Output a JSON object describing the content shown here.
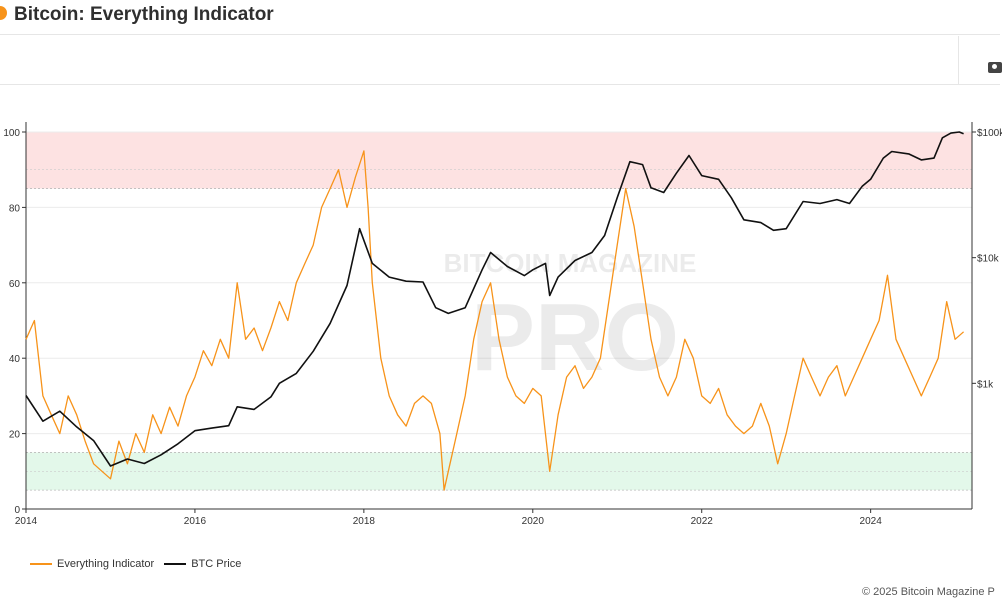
{
  "header": {
    "title": "Bitcoin: Everything Indicator"
  },
  "toolbar": {
    "icons": [
      "camera-icon"
    ]
  },
  "watermark": {
    "line1": "BITCOIN MAGAZINE",
    "line2": "PRO"
  },
  "footer": {
    "copyright": "© 2025 Bitcoin Magazine P"
  },
  "colors": {
    "indicator": "#f7931a",
    "price": "#111111",
    "top_zone": "#fde2e2",
    "bottom_zone": "#e3f8ea"
  },
  "chart_data": {
    "type": "line",
    "title": "Bitcoin: Everything Indicator",
    "xlabel": "",
    "ylabel": "",
    "x_range": [
      2014.0,
      2025.2
    ],
    "y_left_range": [
      0,
      100
    ],
    "y_right_range": [
      100,
      100000
    ],
    "y_right_scale": "log",
    "x_ticks": [
      "2014",
      "2016",
      "2018",
      "2020",
      "2022",
      "2024"
    ],
    "y_left_ticks": [
      "0",
      "20",
      "40",
      "60",
      "80",
      "100"
    ],
    "y_right_ticks": [
      "$1k",
      "$10k",
      "$100k"
    ],
    "zones": [
      {
        "name": "top",
        "from": 85,
        "to": 100
      },
      {
        "name": "bottom",
        "from": 5,
        "to": 15
      }
    ],
    "grid": true,
    "legend_position": "bottom-left",
    "series": [
      {
        "name": "Everything Indicator",
        "axis": "left",
        "points": [
          [
            2014.0,
            45
          ],
          [
            2014.1,
            50
          ],
          [
            2014.2,
            30
          ],
          [
            2014.3,
            25
          ],
          [
            2014.4,
            20
          ],
          [
            2014.5,
            30
          ],
          [
            2014.6,
            25
          ],
          [
            2014.7,
            18
          ],
          [
            2014.8,
            12
          ],
          [
            2014.9,
            10
          ],
          [
            2015.0,
            8
          ],
          [
            2015.1,
            18
          ],
          [
            2015.2,
            12
          ],
          [
            2015.3,
            20
          ],
          [
            2015.4,
            15
          ],
          [
            2015.5,
            25
          ],
          [
            2015.6,
            20
          ],
          [
            2015.7,
            27
          ],
          [
            2015.8,
            22
          ],
          [
            2015.9,
            30
          ],
          [
            2016.0,
            35
          ],
          [
            2016.1,
            42
          ],
          [
            2016.2,
            38
          ],
          [
            2016.3,
            45
          ],
          [
            2016.4,
            40
          ],
          [
            2016.5,
            60
          ],
          [
            2016.6,
            45
          ],
          [
            2016.7,
            48
          ],
          [
            2016.8,
            42
          ],
          [
            2016.9,
            48
          ],
          [
            2017.0,
            55
          ],
          [
            2017.1,
            50
          ],
          [
            2017.2,
            60
          ],
          [
            2017.3,
            65
          ],
          [
            2017.4,
            70
          ],
          [
            2017.5,
            80
          ],
          [
            2017.6,
            85
          ],
          [
            2017.7,
            90
          ],
          [
            2017.8,
            80
          ],
          [
            2017.9,
            88
          ],
          [
            2018.0,
            95
          ],
          [
            2018.05,
            80
          ],
          [
            2018.1,
            60
          ],
          [
            2018.2,
            40
          ],
          [
            2018.3,
            30
          ],
          [
            2018.4,
            25
          ],
          [
            2018.5,
            22
          ],
          [
            2018.6,
            28
          ],
          [
            2018.7,
            30
          ],
          [
            2018.8,
            28
          ],
          [
            2018.9,
            20
          ],
          [
            2018.95,
            5
          ],
          [
            2019.0,
            10
          ],
          [
            2019.1,
            20
          ],
          [
            2019.2,
            30
          ],
          [
            2019.3,
            45
          ],
          [
            2019.4,
            55
          ],
          [
            2019.5,
            60
          ],
          [
            2019.6,
            45
          ],
          [
            2019.7,
            35
          ],
          [
            2019.8,
            30
          ],
          [
            2019.9,
            28
          ],
          [
            2020.0,
            32
          ],
          [
            2020.1,
            30
          ],
          [
            2020.2,
            10
          ],
          [
            2020.3,
            25
          ],
          [
            2020.4,
            35
          ],
          [
            2020.5,
            38
          ],
          [
            2020.6,
            32
          ],
          [
            2020.7,
            35
          ],
          [
            2020.8,
            40
          ],
          [
            2020.9,
            55
          ],
          [
            2021.0,
            70
          ],
          [
            2021.1,
            85
          ],
          [
            2021.2,
            75
          ],
          [
            2021.3,
            60
          ],
          [
            2021.4,
            45
          ],
          [
            2021.5,
            35
          ],
          [
            2021.6,
            30
          ],
          [
            2021.7,
            35
          ],
          [
            2021.8,
            45
          ],
          [
            2021.9,
            40
          ],
          [
            2022.0,
            30
          ],
          [
            2022.1,
            28
          ],
          [
            2022.2,
            32
          ],
          [
            2022.3,
            25
          ],
          [
            2022.4,
            22
          ],
          [
            2022.5,
            20
          ],
          [
            2022.6,
            22
          ],
          [
            2022.7,
            28
          ],
          [
            2022.8,
            22
          ],
          [
            2022.9,
            12
          ],
          [
            2023.0,
            20
          ],
          [
            2023.1,
            30
          ],
          [
            2023.2,
            40
          ],
          [
            2023.3,
            35
          ],
          [
            2023.4,
            30
          ],
          [
            2023.5,
            35
          ],
          [
            2023.6,
            38
          ],
          [
            2023.7,
            30
          ],
          [
            2023.8,
            35
          ],
          [
            2023.9,
            40
          ],
          [
            2024.0,
            45
          ],
          [
            2024.1,
            50
          ],
          [
            2024.2,
            62
          ],
          [
            2024.3,
            45
          ],
          [
            2024.4,
            40
          ],
          [
            2024.5,
            35
          ],
          [
            2024.6,
            30
          ],
          [
            2024.7,
            35
          ],
          [
            2024.8,
            40
          ],
          [
            2024.9,
            55
          ],
          [
            2025.0,
            45
          ],
          [
            2025.1,
            47
          ]
        ]
      },
      {
        "name": "BTC Price",
        "axis": "right",
        "points": [
          [
            2014.0,
            800
          ],
          [
            2014.2,
            500
          ],
          [
            2014.4,
            600
          ],
          [
            2014.6,
            450
          ],
          [
            2014.8,
            350
          ],
          [
            2015.0,
            220
          ],
          [
            2015.2,
            250
          ],
          [
            2015.4,
            230
          ],
          [
            2015.6,
            270
          ],
          [
            2015.8,
            330
          ],
          [
            2016.0,
            420
          ],
          [
            2016.2,
            440
          ],
          [
            2016.4,
            460
          ],
          [
            2016.5,
            650
          ],
          [
            2016.7,
            620
          ],
          [
            2016.9,
            780
          ],
          [
            2017.0,
            1000
          ],
          [
            2017.2,
            1200
          ],
          [
            2017.4,
            1800
          ],
          [
            2017.6,
            3000
          ],
          [
            2017.8,
            6000
          ],
          [
            2017.95,
            17000
          ],
          [
            2018.1,
            9000
          ],
          [
            2018.3,
            7000
          ],
          [
            2018.5,
            6500
          ],
          [
            2018.7,
            6400
          ],
          [
            2018.85,
            4000
          ],
          [
            2019.0,
            3600
          ],
          [
            2019.2,
            4000
          ],
          [
            2019.4,
            8000
          ],
          [
            2019.5,
            11000
          ],
          [
            2019.7,
            8500
          ],
          [
            2019.9,
            7200
          ],
          [
            2020.0,
            8000
          ],
          [
            2020.15,
            9000
          ],
          [
            2020.2,
            5000
          ],
          [
            2020.3,
            7000
          ],
          [
            2020.5,
            9500
          ],
          [
            2020.7,
            11000
          ],
          [
            2020.85,
            15000
          ],
          [
            2021.0,
            30000
          ],
          [
            2021.15,
            58000
          ],
          [
            2021.3,
            55000
          ],
          [
            2021.4,
            36000
          ],
          [
            2021.55,
            33000
          ],
          [
            2021.7,
            47000
          ],
          [
            2021.85,
            65000
          ],
          [
            2022.0,
            45000
          ],
          [
            2022.2,
            42000
          ],
          [
            2022.35,
            30000
          ],
          [
            2022.5,
            20000
          ],
          [
            2022.7,
            19000
          ],
          [
            2022.85,
            16500
          ],
          [
            2023.0,
            17000
          ],
          [
            2023.2,
            28000
          ],
          [
            2023.4,
            27000
          ],
          [
            2023.6,
            29000
          ],
          [
            2023.75,
            27000
          ],
          [
            2023.9,
            37000
          ],
          [
            2024.0,
            42000
          ],
          [
            2024.15,
            62000
          ],
          [
            2024.25,
            70000
          ],
          [
            2024.45,
            67000
          ],
          [
            2024.6,
            60000
          ],
          [
            2024.75,
            62000
          ],
          [
            2024.85,
            90000
          ],
          [
            2024.95,
            98000
          ],
          [
            2025.05,
            100000
          ],
          [
            2025.1,
            97000
          ]
        ]
      }
    ]
  }
}
